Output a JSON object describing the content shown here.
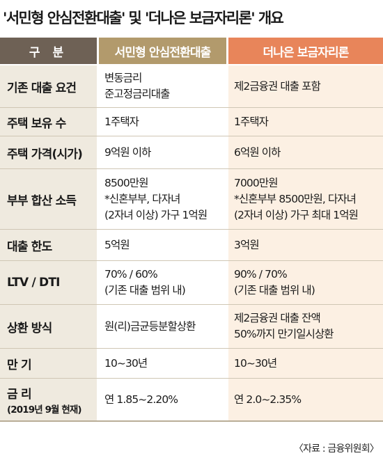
{
  "title": "'서민형 안심전환대출' 및 '더나은 보금자리론' 개요",
  "header": {
    "col1": "구 분",
    "col2": "서민형 안심전환대출",
    "col3": "더나은 보금자리론"
  },
  "rows": [
    {
      "label": "기존 대출 요건",
      "a": [
        "변동금리",
        "준고정금리대출"
      ],
      "b": [
        "제2금융권 대출 포함"
      ]
    },
    {
      "label": "주택 보유 수",
      "a": [
        "1주택자"
      ],
      "b": [
        "1주택자"
      ]
    },
    {
      "label": "주택 가격(시가)",
      "a": [
        "9억원 이하"
      ],
      "b": [
        "6억원 이하"
      ]
    },
    {
      "label": "부부 합산 소득",
      "a": [
        "8500만원",
        "*신혼부부, 다자녀",
        "(2자녀 이상) 가구 1억원"
      ],
      "b": [
        "7000만원",
        "*신혼부부 8500만원, 다자녀",
        "(2자녀 이상) 가구 최대 1억원"
      ]
    },
    {
      "label": "대출 한도",
      "a": [
        "5억원"
      ],
      "b": [
        "3억원"
      ]
    },
    {
      "label": "LTV / DTI",
      "a": [
        "70% / 60%",
        "(기존 대출 범위 내)"
      ],
      "b": [
        "90% / 70%",
        "(기존 대출 범위 내)"
      ]
    },
    {
      "label": "상환 방식",
      "a": [
        "원(리)금균등분할상환"
      ],
      "b": [
        "제2금융권 대출 잔액",
        "50%까지 만기일시상환"
      ]
    },
    {
      "label": "만 기",
      "a": [
        "10~30년"
      ],
      "b": [
        "10~30년"
      ]
    },
    {
      "label": "금 리",
      "label2": "(2019년 9월 현재)",
      "a": [
        "연 1.85~2.20%"
      ],
      "b": [
        "연 2.0~2.35%"
      ]
    }
  ],
  "source": "〈자료 : 금융위원회〉",
  "colors": {
    "header_label": "#6e6155",
    "header_a": "#b29a6c",
    "header_b": "#e8855a",
    "label_bg": "#efeadf",
    "b_bg": "#fcf0e3"
  }
}
